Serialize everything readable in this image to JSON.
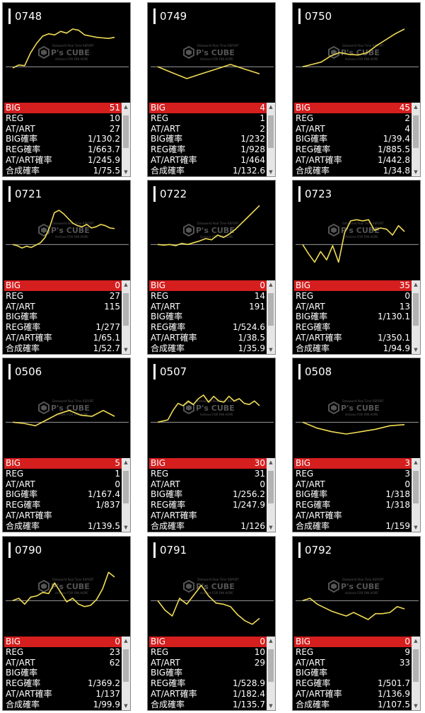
{
  "stat_labels": {
    "big": "BIG",
    "reg": "REG",
    "at_art": "AT/ART",
    "big_prob": "BIG確率",
    "reg_prob": "REG確率",
    "at_art_prob": "AT/ART確率",
    "combined_prob": "合成確率"
  },
  "watermark": {
    "top_text": "Dataworld Real Time REPORT",
    "brand": "P's CUBE",
    "bottom_text": "Achieve FOR FAN HOPE"
  },
  "colors": {
    "line": "#f0dc55",
    "big_row": "#d51e1e",
    "panel_bg": "#000000",
    "baseline": "#9a9a9a"
  },
  "machines": [
    {
      "id": "0748",
      "big": "51",
      "reg": "10",
      "at_art": "27",
      "big_prob": "1/130.2",
      "reg_prob": "1/663.7",
      "at_art_prob": "1/245.9",
      "combined_prob": "1/75.5",
      "chart_data": {
        "type": "line",
        "baseline": 0,
        "ylim": [
          -2500,
          3500
        ],
        "values": [
          -100,
          150,
          100,
          1200,
          2000,
          2600,
          2800,
          2700,
          3000,
          2850,
          3200,
          3100,
          2700,
          2600,
          2500,
          2450,
          2400,
          2500
        ]
      }
    },
    {
      "id": "0749",
      "big": "4",
      "reg": "1",
      "at_art": "2",
      "big_prob": "1/232",
      "reg_prob": "1/928",
      "at_art_prob": "1/464",
      "combined_prob": "1/132.6",
      "chart_data": {
        "type": "line",
        "baseline": 0,
        "ylim": [
          -2500,
          3500
        ],
        "values": [
          0,
          -500,
          -1000,
          -600,
          -200,
          200,
          -200,
          -600
        ]
      }
    },
    {
      "id": "0750",
      "big": "45",
      "reg": "2",
      "at_art": "4",
      "big_prob": "1/39.4",
      "reg_prob": "1/885.5",
      "at_art_prob": "1/442.8",
      "combined_prob": "1/34.8",
      "chart_data": {
        "type": "line",
        "baseline": 0,
        "ylim": [
          -2500,
          3500
        ],
        "values": [
          0,
          200,
          400,
          900,
          1200,
          1050,
          1000,
          1200,
          1800,
          2300,
          2800,
          3200
        ]
      }
    },
    {
      "id": "0721",
      "big": "0",
      "reg": "27",
      "at_art": "115",
      "big_prob": "",
      "reg_prob": "1/277",
      "at_art_prob": "1/65.1",
      "combined_prob": "1/52.7",
      "chart_data": {
        "type": "line",
        "baseline": 0,
        "ylim": [
          -2500,
          3500
        ],
        "values": [
          0,
          -100,
          -300,
          -150,
          -250,
          -50,
          150,
          600,
          1500,
          2700,
          2900,
          2600,
          2200,
          1800,
          1600,
          1500,
          1700,
          1400,
          1500,
          1700,
          1600,
          1400,
          1350
        ]
      }
    },
    {
      "id": "0722",
      "big": "0",
      "reg": "14",
      "at_art": "191",
      "big_prob": "",
      "reg_prob": "1/524.6",
      "at_art_prob": "1/38.5",
      "combined_prob": "1/35.9",
      "chart_data": {
        "type": "line",
        "baseline": 0,
        "ylim": [
          -2500,
          3500
        ],
        "values": [
          0,
          -50,
          0,
          -100,
          100,
          0,
          150,
          300,
          500,
          400,
          800,
          600,
          900,
          1300,
          1800,
          2300,
          2800,
          3300
        ]
      }
    },
    {
      "id": "0723",
      "big": "35",
      "reg": "0",
      "at_art": "13",
      "big_prob": "1/130.1",
      "reg_prob": "",
      "at_art_prob": "1/350.1",
      "combined_prob": "1/94.9",
      "chart_data": {
        "type": "line",
        "baseline": 0,
        "ylim": [
          -2500,
          3500
        ],
        "values": [
          0,
          -800,
          -1500,
          -600,
          -1300,
          -100,
          -1500,
          1000,
          2000,
          2100,
          2000,
          2100,
          1200,
          1400,
          1300,
          800,
          1600,
          1100
        ]
      }
    },
    {
      "id": "0506",
      "big": "5",
      "reg": "1",
      "at_art": "0",
      "big_prob": "1/167.4",
      "reg_prob": "1/837",
      "at_art_prob": "",
      "combined_prob": "1/139.5",
      "chart_data": {
        "type": "line",
        "baseline": 0,
        "ylim": [
          -2500,
          3500
        ],
        "values": [
          0,
          -100,
          -300,
          200,
          700,
          1000,
          600,
          500,
          1000,
          500
        ]
      }
    },
    {
      "id": "0507",
      "big": "30",
      "reg": "31",
      "at_art": "0",
      "big_prob": "1/256.2",
      "reg_prob": "1/247.9",
      "at_art_prob": "",
      "combined_prob": "1/126",
      "chart_data": {
        "type": "line",
        "baseline": 0,
        "ylim": [
          -2500,
          3500
        ],
        "values": [
          0,
          100,
          200,
          1000,
          1600,
          1400,
          1800,
          1500,
          2000,
          2300,
          1700,
          2200,
          1800,
          1700,
          2200,
          1800,
          2000,
          1600,
          1500,
          1800,
          1400
        ]
      }
    },
    {
      "id": "0508",
      "big": "3",
      "reg": "3",
      "at_art": "0",
      "big_prob": "1/318",
      "reg_prob": "1/318",
      "at_art_prob": "",
      "combined_prob": "1/159",
      "chart_data": {
        "type": "line",
        "baseline": 0,
        "ylim": [
          -2500,
          3500
        ],
        "values": [
          0,
          -500,
          -800,
          -1000,
          -800,
          -600,
          -300,
          -200
        ]
      }
    },
    {
      "id": "0790",
      "big": "0",
      "reg": "23",
      "at_art": "62",
      "big_prob": "",
      "reg_prob": "1/369.2",
      "at_art_prob": "1/137",
      "combined_prob": "1/99.9",
      "chart_data": {
        "type": "line",
        "baseline": 0,
        "ylim": [
          -2500,
          3500
        ],
        "values": [
          0,
          200,
          -300,
          300,
          400,
          700,
          600,
          1500,
          700,
          -100,
          200,
          -300,
          -500,
          -400,
          100,
          1000,
          2400,
          2000
        ]
      }
    },
    {
      "id": "0791",
      "big": "0",
      "reg": "10",
      "at_art": "29",
      "big_prob": "",
      "reg_prob": "1/528.9",
      "at_art_prob": "1/182.4",
      "combined_prob": "1/135.7",
      "chart_data": {
        "type": "line",
        "baseline": 0,
        "ylim": [
          -2500,
          3500
        ],
        "values": [
          0,
          -800,
          -1300,
          200,
          -300,
          500,
          1300,
          400,
          -200,
          -300,
          -500,
          -1200,
          -1700,
          -2000,
          -1500
        ]
      }
    },
    {
      "id": "0792",
      "big": "0",
      "reg": "9",
      "at_art": "33",
      "big_prob": "",
      "reg_prob": "1/501.7",
      "at_art_prob": "1/136.9",
      "combined_prob": "1/107.5",
      "chart_data": {
        "type": "line",
        "baseline": 0,
        "ylim": [
          -2500,
          3500
        ],
        "values": [
          0,
          200,
          -300,
          -600,
          -900,
          -1100,
          -1300,
          -1000,
          -1300,
          -1600,
          -1100,
          -1100,
          -1000,
          -500,
          -700
        ]
      }
    }
  ]
}
